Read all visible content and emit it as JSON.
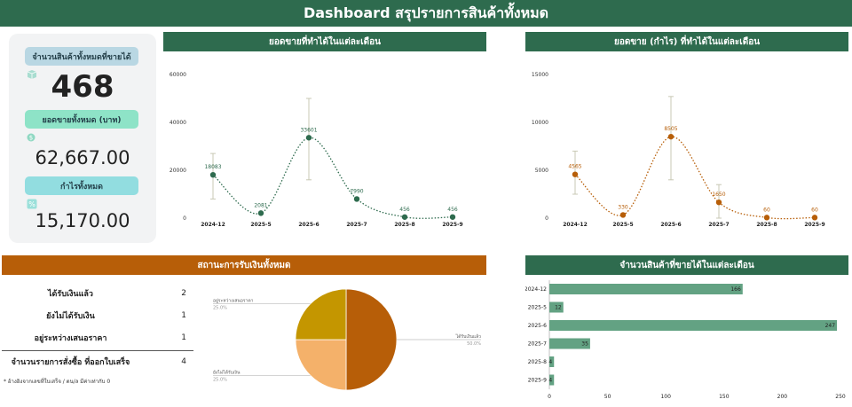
{
  "page_title": "Dashboard สรุปรายการสินค้าทั้งหมด",
  "kpis": {
    "items_label": "จำนวนสินค้าทั้งหมดที่ขายได้",
    "items_value": "468",
    "sales_label": "ยอดขายทั้งหมด (บาท)",
    "sales_value": "62,667.00",
    "profit_label": "กำไรทั้งหมด",
    "profit_value": "15,170.00",
    "icons": [
      "box-icon",
      "money-icon",
      "percent-icon"
    ]
  },
  "status": {
    "header": "สถานะการรับเงินทั้งหมด",
    "rows": [
      {
        "label": "ได้รับเงินแล้ว",
        "value": "2"
      },
      {
        "label": "ยังไม่ได้รับเงิน",
        "value": "1"
      },
      {
        "label": "อยู่ระหว่างเสนอราคา",
        "value": "1"
      }
    ],
    "total_label": "จำนวนรายการสั่งซื้อ ที่ออกใบเสร็จ",
    "total_value": "4",
    "footnote": "* อ้างอิงจากเลขที่ใบเสร็จ / ตน/ล มีค่าเท่ากับ 0"
  },
  "colors": {
    "header_green": "#2e6b4e",
    "header_orange": "#b75e08",
    "sales_line": "#2e6b4e",
    "profit_line": "#b75e08",
    "bar": "#63a283",
    "pie": [
      "#b75e08",
      "#f4b16a",
      "#c49600"
    ]
  },
  "chart_data": [
    {
      "type": "line",
      "title": "ยอดขายที่ทำได้ในแต่ละเดือน",
      "categories": [
        "2024-12",
        "2025-5",
        "2025-6",
        "2025-7",
        "2025-8",
        "2025-9"
      ],
      "values": [
        18083,
        2081,
        33601,
        7990,
        456,
        456
      ],
      "data_labels": [
        "18083",
        "2081",
        "33601",
        "7990",
        "456",
        "456"
      ],
      "error_bars": [
        {
          "low": 8000,
          "high": 27000
        },
        null,
        {
          "low": 16000,
          "high": 50000
        },
        null,
        null,
        null
      ],
      "ylim": [
        0,
        60000
      ],
      "yticks": [
        "0",
        "20000",
        "40000",
        "60000"
      ],
      "grid": false
    },
    {
      "type": "line",
      "title": "ยอดขาย (กำไร) ที่ทำได้ในแต่ละเดือน",
      "categories": [
        "2024-12",
        "2025-5",
        "2025-6",
        "2025-7",
        "2025-8",
        "2025-9"
      ],
      "values": [
        4565,
        330,
        8505,
        1650,
        60,
        60
      ],
      "data_labels": [
        "4565",
        "330",
        "8505",
        "1650",
        "60",
        "60"
      ],
      "error_bars": [
        {
          "low": 2500,
          "high": 7000
        },
        null,
        {
          "low": 4000,
          "high": 12700
        },
        {
          "low": 0,
          "high": 3500
        },
        null,
        null
      ],
      "ylim": [
        0,
        15000
      ],
      "yticks": [
        "0",
        "5000",
        "10000",
        "15000"
      ],
      "grid": false
    },
    {
      "type": "pie",
      "title": "สถานะการรับเงินทั้งหมด",
      "slices": [
        {
          "label": "ได้รับเงินแล้ว",
          "value": 50.0,
          "pct_label": "50.0%"
        },
        {
          "label": "ยังไม่ได้รับเงิน",
          "value": 25.0,
          "pct_label": "25.0%"
        },
        {
          "label": "อยู่ระหว่างเสนอราคา",
          "value": 25.0,
          "pct_label": "25.0%"
        }
      ]
    },
    {
      "type": "bar",
      "orientation": "horizontal",
      "title": "จำนวนสินค้าที่ขายได้ในแต่ละเดือน",
      "categories": [
        "2024-12",
        "2025-5",
        "2025-6",
        "2025-7",
        "2025-8",
        "2025-9"
      ],
      "values": [
        166,
        12,
        247,
        35,
        4,
        4
      ],
      "xlim": [
        0,
        250
      ],
      "xticks": [
        "0",
        "50",
        "100",
        "150",
        "200",
        "250"
      ],
      "grid": false
    }
  ]
}
